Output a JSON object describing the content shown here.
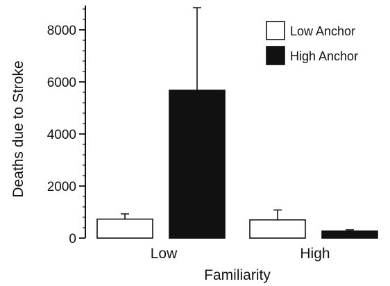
{
  "chart_data": {
    "type": "bar",
    "title": "",
    "xlabel": "Familiarity",
    "ylabel": "Deaths due to Stroke",
    "categories": [
      "Low",
      "High"
    ],
    "ylim": [
      0,
      9000
    ],
    "yticks": [
      "0",
      "2000",
      "4000",
      "6000",
      "8000"
    ],
    "series": [
      {
        "name": "Low Anchor",
        "values": [
          730,
          700
        ],
        "error": [
          200,
          380
        ],
        "fill": "#ffffff"
      },
      {
        "name": "High Anchor",
        "values": [
          5680,
          270
        ],
        "error": [
          3170,
          50
        ],
        "fill": "#111111"
      }
    ],
    "legend_position": "top-right",
    "grid": false
  }
}
